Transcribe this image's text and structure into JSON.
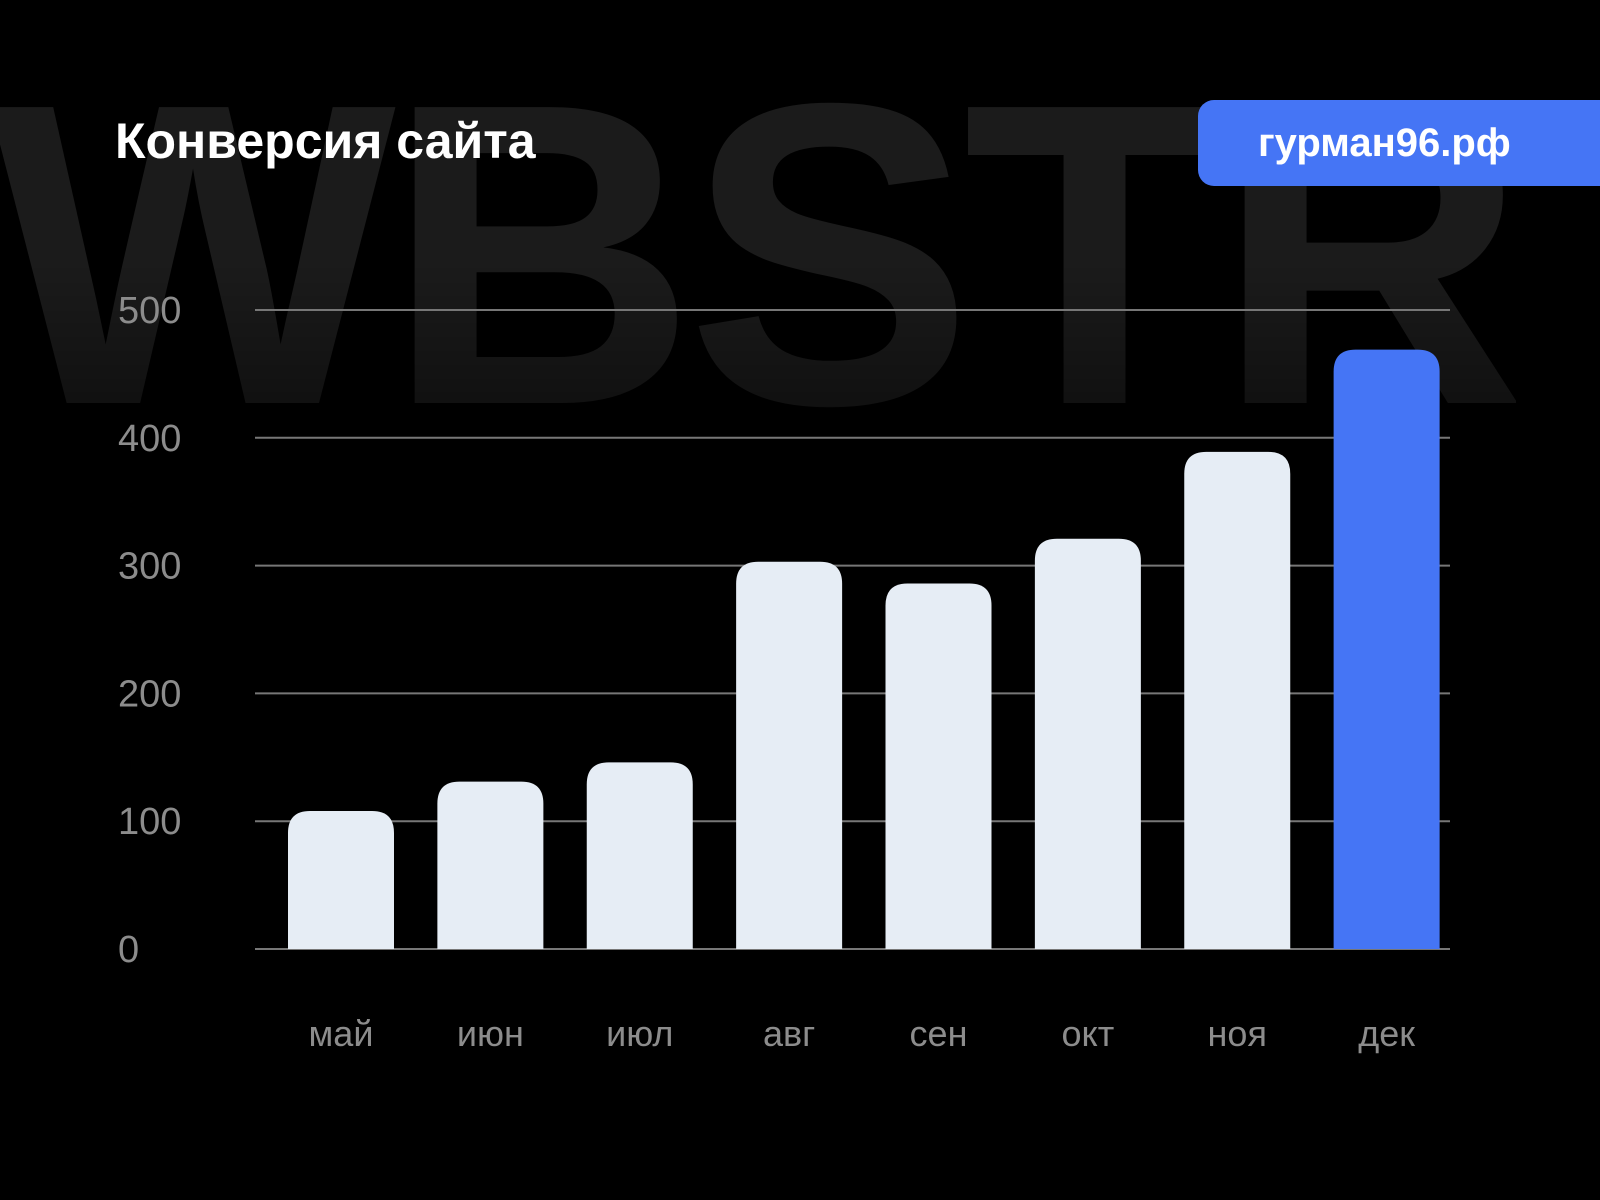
{
  "watermark": "WBSTR",
  "title": "Конверсия сайта",
  "badge": "гурман96.рф",
  "chart_data": {
    "type": "bar",
    "title": "Конверсия сайта",
    "categories": [
      "май",
      "июн",
      "июл",
      "авг",
      "сен",
      "окт",
      "ноя",
      "дек"
    ],
    "values": [
      108,
      131,
      146,
      303,
      286,
      321,
      389,
      469
    ],
    "ylim": [
      0,
      500
    ],
    "yticks": [
      0,
      100,
      200,
      300,
      400,
      500
    ],
    "grid": true,
    "colors": {
      "bar": "#e6edf5",
      "highlight": "#4575f5",
      "grid": "#777777",
      "background": "#000000"
    },
    "highlight_index": 7
  }
}
